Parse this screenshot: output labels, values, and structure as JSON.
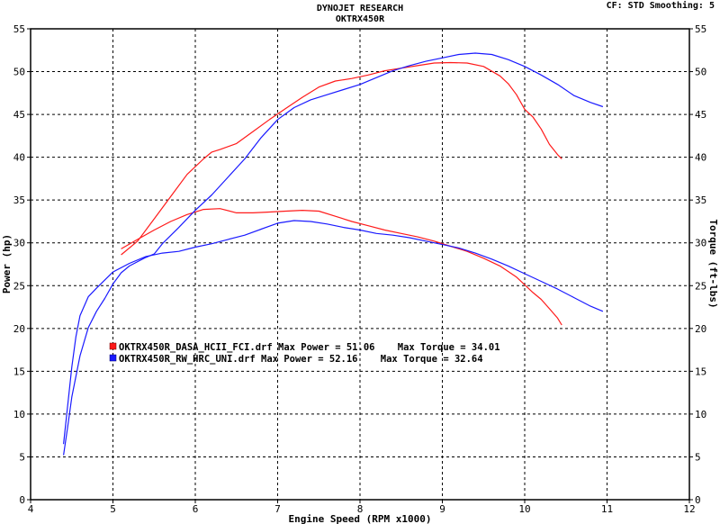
{
  "header": {
    "title": "DYNOJET RESEARCH",
    "subtitle": "OKTRX450R",
    "settings": "CF: STD  Smoothing: 5"
  },
  "chart_data": {
    "type": "line",
    "xlabel": "Engine Speed (RPM x1000)",
    "ylabel_left": "Power (hp)",
    "ylabel_right": "Torque (ft-lbs)",
    "xlim": [
      4,
      12
    ],
    "ylim": [
      0,
      55
    ],
    "xticks": [
      "4",
      "5",
      "6",
      "7",
      "8",
      "9",
      "10",
      "11",
      "12"
    ],
    "yticks": [
      "0",
      "5",
      "10",
      "15",
      "20",
      "25",
      "30",
      "35",
      "40",
      "45",
      "50",
      "55"
    ],
    "grid": true,
    "legend_position": "lower-left",
    "colors": {
      "red": "#ff1a1a",
      "blue": "#1a1aff"
    },
    "series": [
      {
        "name": "OKTRX450R_DASA_HCII_FCI.drf",
        "color": "#ff1a1a",
        "summary": "OKTRX450R_DASA_HCII_FCI.drf Max Power = 51.06    Max Torque = 34.01",
        "power": {
          "x": [
            5.1,
            5.3,
            5.5,
            5.7,
            5.9,
            6.1,
            6.2,
            6.3,
            6.5,
            6.7,
            6.9,
            7.1,
            7.3,
            7.5,
            7.7,
            7.9,
            8.1,
            8.3,
            8.5,
            8.7,
            8.9,
            9.1,
            9.3,
            9.5,
            9.7,
            9.8,
            9.9,
            10.0,
            10.1,
            10.2,
            10.3,
            10.4,
            10.45
          ],
          "y": [
            28.6,
            30.2,
            32.8,
            35.4,
            38.0,
            39.8,
            40.6,
            40.9,
            41.6,
            43.0,
            44.4,
            45.7,
            47.0,
            48.2,
            48.9,
            49.2,
            49.6,
            50.1,
            50.4,
            50.7,
            51.0,
            51.06,
            51.0,
            50.6,
            49.5,
            48.6,
            47.3,
            45.6,
            44.7,
            43.3,
            41.5,
            40.3,
            39.8
          ]
        },
        "torque": {
          "x": [
            5.1,
            5.3,
            5.5,
            5.7,
            5.9,
            6.1,
            6.3,
            6.5,
            6.7,
            6.9,
            7.1,
            7.3,
            7.5,
            7.7,
            7.9,
            8.1,
            8.3,
            8.5,
            8.7,
            8.9,
            9.1,
            9.3,
            9.5,
            9.7,
            9.9,
            10.0,
            10.1,
            10.2,
            10.3,
            10.4,
            10.45
          ],
          "y": [
            29.3,
            30.4,
            31.5,
            32.5,
            33.3,
            33.9,
            34.0,
            33.5,
            33.5,
            33.6,
            33.7,
            33.8,
            33.7,
            33.1,
            32.5,
            32.0,
            31.5,
            31.1,
            30.7,
            30.2,
            29.6,
            29.0,
            28.2,
            27.3,
            26.0,
            25.1,
            24.2,
            23.4,
            22.3,
            21.2,
            20.4
          ]
        }
      },
      {
        "name": "OKTRX450R_RW_HRC_UNI.drf",
        "color": "#1a1aff",
        "summary": "OKTRX450R_RW_HRC_UNI.drf Max Power = 52.16    Max Torque = 32.64",
        "power": {
          "x": [
            4.4,
            4.45,
            4.5,
            4.6,
            4.7,
            4.8,
            4.9,
            5.0,
            5.1,
            5.2,
            5.3,
            5.4,
            5.5,
            5.6,
            5.8,
            6.0,
            6.2,
            6.4,
            6.6,
            6.8,
            7.0,
            7.2,
            7.4,
            7.6,
            7.8,
            8.0,
            8.2,
            8.4,
            8.6,
            8.8,
            9.0,
            9.2,
            9.4,
            9.6,
            9.8,
            10.0,
            10.2,
            10.4,
            10.6,
            10.8,
            10.95
          ],
          "y": [
            5.2,
            8.5,
            12.0,
            16.8,
            20.1,
            22.0,
            23.5,
            25.2,
            26.5,
            27.3,
            27.8,
            28.3,
            28.7,
            29.9,
            31.8,
            33.8,
            35.6,
            37.7,
            39.8,
            42.3,
            44.4,
            45.8,
            46.7,
            47.3,
            47.9,
            48.5,
            49.3,
            50.1,
            50.7,
            51.2,
            51.6,
            52.0,
            52.16,
            52.0,
            51.4,
            50.6,
            49.6,
            48.5,
            47.2,
            46.4,
            45.9
          ]
        },
        "torque": {
          "x": [
            4.4,
            4.45,
            4.5,
            4.55,
            4.6,
            4.7,
            4.8,
            5.0,
            5.2,
            5.4,
            5.6,
            5.8,
            6.0,
            6.2,
            6.4,
            6.6,
            6.8,
            7.0,
            7.2,
            7.4,
            7.6,
            7.8,
            8.0,
            8.2,
            8.4,
            8.6,
            8.8,
            9.0,
            9.2,
            9.4,
            9.6,
            9.8,
            10.0,
            10.2,
            10.4,
            10.6,
            10.8,
            10.95
          ],
          "y": [
            6.5,
            11.0,
            15.5,
            19.0,
            21.5,
            23.7,
            24.7,
            26.6,
            27.6,
            28.4,
            28.8,
            29.0,
            29.5,
            29.9,
            30.4,
            30.9,
            31.6,
            32.3,
            32.6,
            32.5,
            32.2,
            31.8,
            31.5,
            31.1,
            30.9,
            30.6,
            30.2,
            29.8,
            29.4,
            28.8,
            28.1,
            27.3,
            26.4,
            25.5,
            24.6,
            23.6,
            22.6,
            22.0
          ]
        }
      }
    ]
  }
}
